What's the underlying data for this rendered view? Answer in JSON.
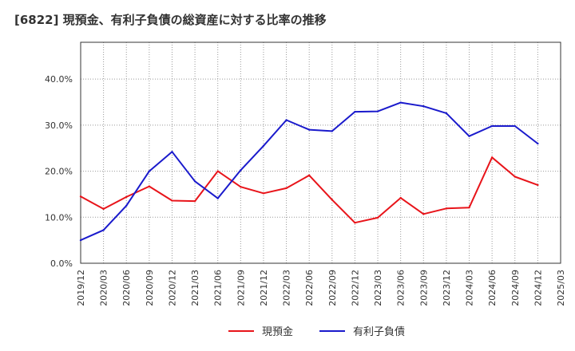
{
  "chart_data": {
    "type": "line",
    "title": "[6822]  現預金、有利子負債の総資産に対する比率の推移",
    "xlabel": "",
    "ylabel": "",
    "ylim": [
      0,
      48
    ],
    "yticks": [
      0,
      10,
      20,
      30,
      40
    ],
    "ytick_labels": [
      "0.0%",
      "10.0%",
      "20.0%",
      "30.0%",
      "40.0%"
    ],
    "categories": [
      "2019/12",
      "2020/03",
      "2020/06",
      "2020/09",
      "2020/12",
      "2021/03",
      "2021/06",
      "2021/09",
      "2021/12",
      "2022/03",
      "2022/06",
      "2022/09",
      "2022/12",
      "2023/03",
      "2023/06",
      "2023/09",
      "2023/12",
      "2024/03",
      "2024/06",
      "2024/09",
      "2024/12",
      "2025/03"
    ],
    "series": [
      {
        "name": "現預金",
        "color": "#e8141a",
        "values": [
          14.5,
          11.8,
          14.4,
          16.7,
          13.6,
          13.5,
          20.0,
          16.6,
          15.2,
          16.3,
          19.1,
          13.8,
          8.8,
          9.9,
          14.2,
          10.7,
          11.9,
          12.1,
          23.0,
          18.8,
          17.0,
          null
        ]
      },
      {
        "name": "有利子負債",
        "color": "#1a1acc",
        "values": [
          5.0,
          7.2,
          12.5,
          20.0,
          24.2,
          17.8,
          14.1,
          20.2,
          25.5,
          31.1,
          29.0,
          28.7,
          32.9,
          33.0,
          34.9,
          34.1,
          32.6,
          27.6,
          29.8,
          29.8,
          26.0,
          null
        ]
      }
    ],
    "legend_position": "bottom-center",
    "grid": true
  }
}
